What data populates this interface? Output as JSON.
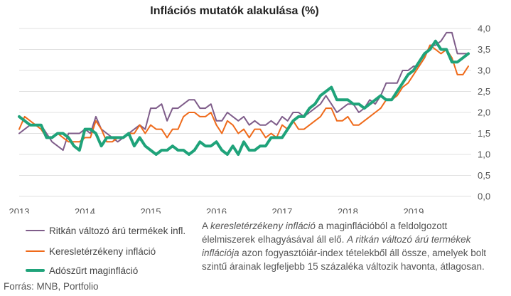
{
  "chart_data": {
    "type": "line",
    "title": "Inflációs mutatók alakulása (%)",
    "x_tick_labels": [
      "2013",
      "2014",
      "2015",
      "2016",
      "2017",
      "2018",
      "2019"
    ],
    "y_tick_labels": [
      "4,0",
      "3,5",
      "3,0",
      "2,5",
      "2,0",
      "1,5",
      "1,0",
      "0,5",
      "0,0"
    ],
    "ylim": [
      0,
      4
    ],
    "y_axis_side": "right",
    "grid": "horizontal",
    "x_start": "2013-01",
    "frequency": "monthly",
    "colors": {
      "ritkan": "#7f5d8a",
      "kereslet": "#ef6a1a",
      "adoszurt": "#1fa37a",
      "grid": "#e0e0e0"
    },
    "series": [
      {
        "name": "Ritkán változó árú termékek infl.",
        "color": "#7f5d8a",
        "width": 2,
        "values": [
          1.5,
          1.6,
          1.7,
          1.7,
          1.7,
          1.5,
          1.3,
          1.2,
          1.1,
          1.5,
          1.5,
          1.5,
          1.6,
          1.5,
          1.9,
          1.6,
          1.5,
          1.4,
          1.3,
          1.4,
          1.5,
          1.6,
          1.7,
          1.6,
          2.1,
          2.1,
          2.2,
          1.8,
          2.1,
          2.1,
          2.2,
          2.3,
          2.3,
          2.1,
          2.1,
          2.2,
          1.8,
          1.8,
          2.0,
          1.9,
          1.8,
          1.9,
          1.7,
          1.8,
          1.7,
          1.7,
          1.8,
          1.7,
          1.9,
          1.8,
          2.0,
          2.0,
          1.9,
          2.0,
          2.1,
          2.2,
          2.4,
          2.2,
          2.0,
          2.1,
          2.2,
          2.2,
          2.0,
          2.1,
          2.3,
          2.2,
          2.4,
          2.7,
          2.7,
          2.7,
          3.0,
          3.0,
          3.1,
          3.1,
          3.3,
          3.6,
          3.6,
          3.7,
          3.9,
          3.9,
          3.4,
          3.4,
          3.4
        ]
      },
      {
        "name": "Keresletérzékeny infláció",
        "color": "#ef6a1a",
        "width": 2,
        "values": [
          1.6,
          1.9,
          1.8,
          1.7,
          1.6,
          1.4,
          1.4,
          1.5,
          1.4,
          1.3,
          1.3,
          1.3,
          1.4,
          1.4,
          1.8,
          1.6,
          1.3,
          1.3,
          1.4,
          1.4,
          1.5,
          1.5,
          1.7,
          1.5,
          1.7,
          1.6,
          1.6,
          1.4,
          1.6,
          1.6,
          1.9,
          2.0,
          2.0,
          1.9,
          1.9,
          2.0,
          1.7,
          1.5,
          1.8,
          1.7,
          1.5,
          1.6,
          1.4,
          1.6,
          1.6,
          1.4,
          1.5,
          1.4,
          1.7,
          1.6,
          1.8,
          1.6,
          1.6,
          1.7,
          1.8,
          1.9,
          2.1,
          2.1,
          1.8,
          1.8,
          1.9,
          1.7,
          1.7,
          1.8,
          1.9,
          2.0,
          2.1,
          2.3,
          2.3,
          2.4,
          2.6,
          2.7,
          2.9,
          3.1,
          3.3,
          3.6,
          3.5,
          3.4,
          3.5,
          3.3,
          2.9,
          2.9,
          3.1
        ]
      },
      {
        "name": "Adószűrt maginfláció",
        "color": "#1fa37a",
        "width": 4,
        "values": [
          1.9,
          1.8,
          1.7,
          1.7,
          1.7,
          1.4,
          1.4,
          1.5,
          1.5,
          1.4,
          1.2,
          1.1,
          1.6,
          1.6,
          1.5,
          1.2,
          1.4,
          1.4,
          1.4,
          1.4,
          1.5,
          1.2,
          1.4,
          1.2,
          1.1,
          1.0,
          1.1,
          1.1,
          1.2,
          1.1,
          1.1,
          1.0,
          1.1,
          1.3,
          1.2,
          1.2,
          1.3,
          1.1,
          1.0,
          1.2,
          1.0,
          1.3,
          1.1,
          1.1,
          1.2,
          1.2,
          1.4,
          1.4,
          1.4,
          1.6,
          1.8,
          1.9,
          1.9,
          2.1,
          2.2,
          2.4,
          2.5,
          2.6,
          2.3,
          2.3,
          2.3,
          2.2,
          2.2,
          2.1,
          2.2,
          2.3,
          2.4,
          2.3,
          2.3,
          2.5,
          2.7,
          2.9,
          3.0,
          3.2,
          3.4,
          3.5,
          3.7,
          3.5,
          3.5,
          3.2,
          3.2,
          3.3,
          3.4
        ]
      }
    ]
  },
  "legend": [
    {
      "label": "Ritkán változó árú termékek infl.",
      "color": "#7f5d8a",
      "thickness": 2
    },
    {
      "label": "Keresletérzékeny infláció",
      "color": "#ef6a1a",
      "thickness": 2
    },
    {
      "label": "Adószűrt maginfláció",
      "color": "#1fa37a",
      "thickness": 4
    }
  ],
  "footnote": {
    "p1": "A ",
    "p2_italic": "keresletérzékeny infláció",
    "p3": " a maginflációból a feldolgozott élelmiszerek elhagyásával áll elő. ",
    "p4_italic": "A ritkán változó árú termékek inflációja",
    "p5": " azon fogyasztóiár-index tételekből áll össze, amelyek bolt szintű árainak legfeljebb 15 százaléka változik havonta, átlagosan."
  },
  "source": "Forrás: MNB, Portfolio"
}
